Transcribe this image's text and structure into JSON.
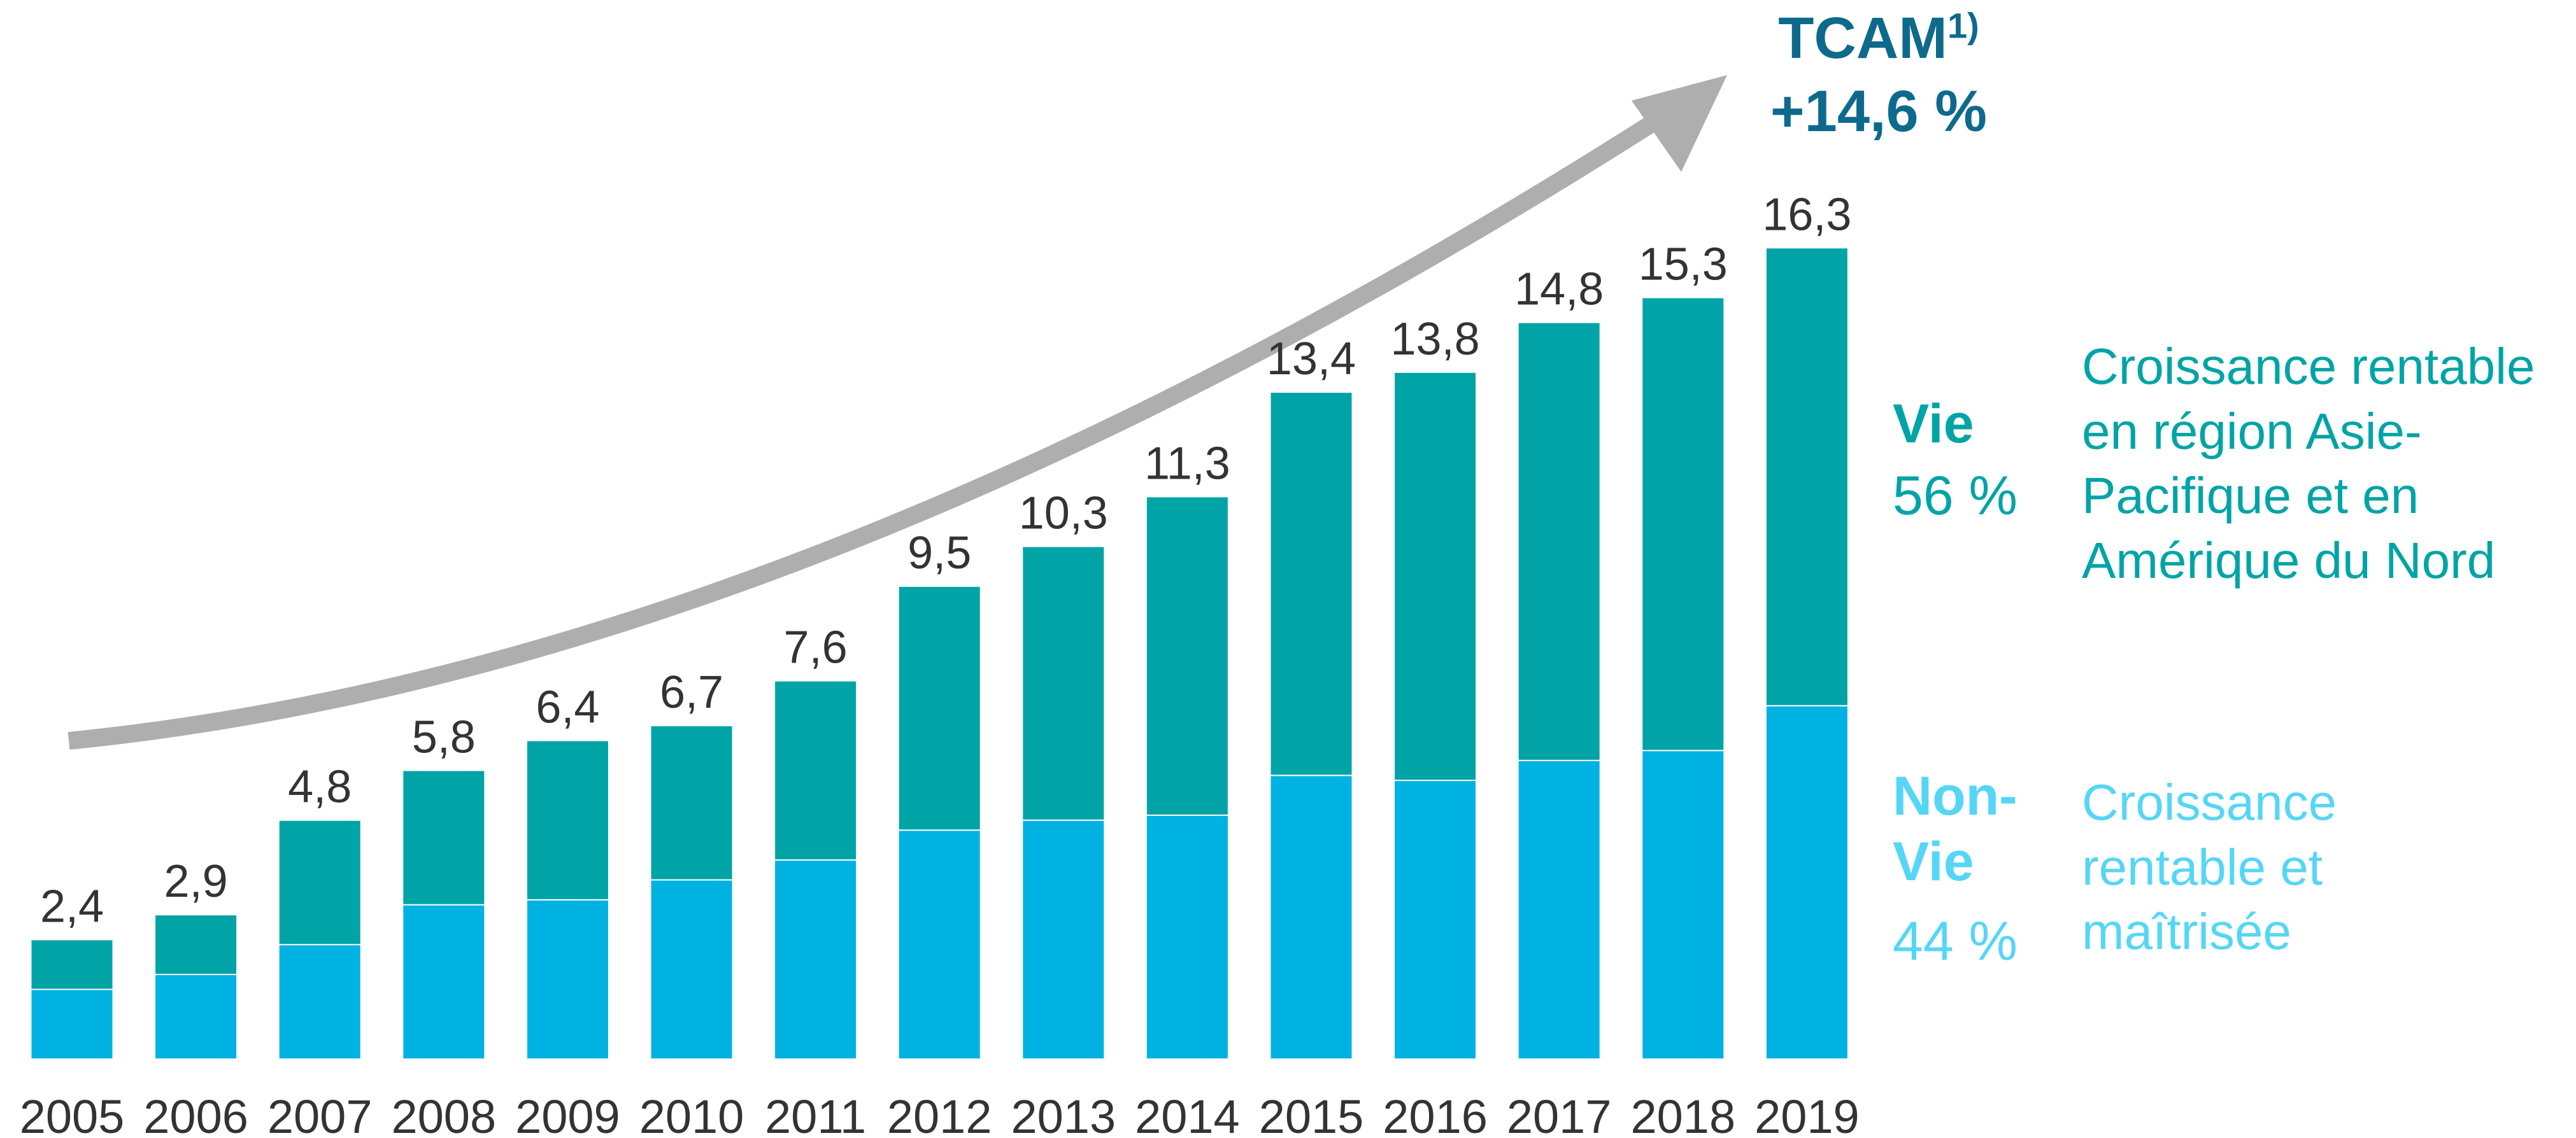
{
  "chart_data": {
    "type": "stacked_bar",
    "categories": [
      "2005",
      "2006",
      "2007",
      "2008",
      "2009",
      "2010",
      "2011",
      "2012",
      "2013",
      "2014",
      "2015",
      "2016",
      "2017",
      "2018",
      "2019"
    ],
    "series": [
      {
        "name": "Non-Vie",
        "color": "#00b2e2",
        "label_color": "#55d6f7",
        "share": 44,
        "share_label": "44 %",
        "note": [
          "Croissance",
          "rentable et",
          "maîtrisée"
        ],
        "values": [
          1.4,
          1.7,
          2.3,
          3.1,
          3.2,
          3.6,
          4.0,
          4.6,
          4.8,
          4.9,
          5.7,
          5.6,
          6.0,
          6.2,
          7.1
        ]
      },
      {
        "name": "Vie",
        "color": "#00a4a6",
        "label_color": "#00a4a6",
        "share": 56,
        "share_label": "56 %",
        "note": [
          "Croissance rentable",
          "en région Asie-",
          "Pacifique et en",
          "Amérique du Nord"
        ],
        "values": [
          1.0,
          1.2,
          2.5,
          2.7,
          3.2,
          3.1,
          3.6,
          4.9,
          5.5,
          6.4,
          7.7,
          8.2,
          8.8,
          9.1,
          9.2
        ]
      }
    ],
    "totals": {
      "values": [
        2.4,
        2.9,
        4.8,
        5.8,
        6.4,
        6.7,
        7.6,
        9.5,
        10.3,
        11.3,
        13.4,
        13.8,
        14.8,
        15.3,
        16.3
      ],
      "value_labels": [
        "2,4",
        "2,9",
        "4,8",
        "5,8",
        "6,4",
        "6,7",
        "7,6",
        "9,5",
        "10,3",
        "11,3",
        "13,4",
        "13,8",
        "14,8",
        "15,3",
        "16,3"
      ]
    },
    "cagr": {
      "title": "TCAM",
      "footnote": "1)",
      "value": 14.6,
      "label": "+14,6 %",
      "color": "#0d6a8c"
    },
    "ylim": [
      0,
      20
    ]
  }
}
